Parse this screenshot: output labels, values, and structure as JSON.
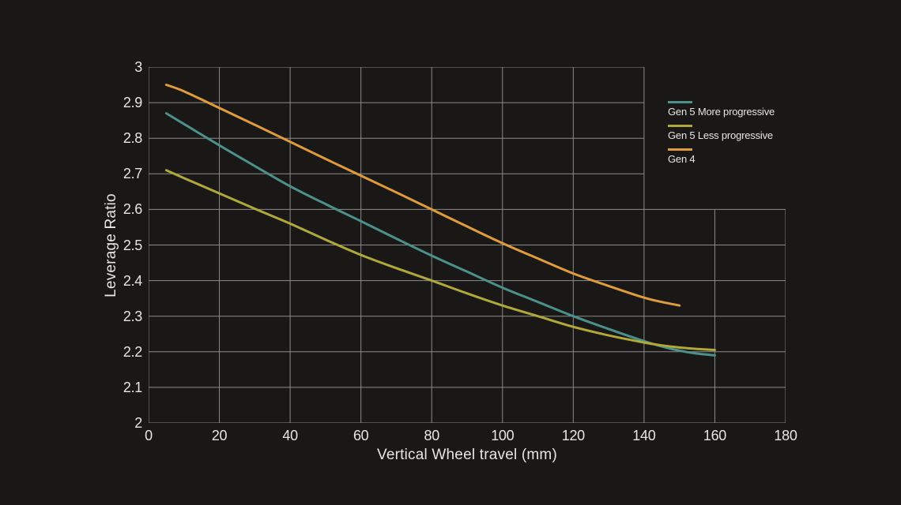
{
  "colors": {
    "background": "#1A1817",
    "grid": "#8A8A8A",
    "text": "#E7E5E2"
  },
  "chart_data": {
    "type": "line",
    "title": "",
    "xlabel": "Vertical Wheel travel (mm)",
    "ylabel": "Leverage Ratio",
    "xlim": [
      0,
      180
    ],
    "ylim": [
      2,
      3
    ],
    "grid": true,
    "grid_cutout": {
      "x_from": 140,
      "y_above": 2.6
    },
    "legend_position": "top-right",
    "x_tick_values": [
      0,
      20,
      40,
      60,
      80,
      100,
      120,
      140,
      160,
      180
    ],
    "x_tick_labels": [
      "0",
      "20",
      "40",
      "60",
      "80",
      "100",
      "120",
      "140",
      "160",
      "180"
    ],
    "y_tick_values": [
      2,
      2.1,
      2.2,
      2.3,
      2.4,
      2.5,
      2.6,
      2.7,
      2.8,
      2.9,
      3
    ],
    "y_tick_labels": [
      "2",
      "2.1",
      "2.2",
      "2.3",
      "2.4",
      "2.5",
      "2.6",
      "2.7",
      "2.8",
      "2.9",
      "3"
    ],
    "series": [
      {
        "name": "Gen 5 More progressive",
        "color": "#4C908C",
        "x": [
          5,
          10,
          20,
          30,
          40,
          50,
          60,
          70,
          80,
          90,
          100,
          110,
          120,
          130,
          140,
          145,
          150,
          155,
          160
        ],
        "y": [
          2.87,
          2.84,
          2.78,
          2.722,
          2.665,
          2.615,
          2.567,
          2.518,
          2.47,
          2.425,
          2.38,
          2.34,
          2.3,
          2.264,
          2.23,
          2.215,
          2.203,
          2.195,
          2.19
        ]
      },
      {
        "name": "Gen 5 Less progressive",
        "color": "#B1A83A",
        "x": [
          5,
          10,
          20,
          30,
          40,
          50,
          60,
          70,
          80,
          90,
          100,
          110,
          120,
          130,
          140,
          145,
          150,
          155,
          160
        ],
        "y": [
          2.71,
          2.688,
          2.645,
          2.602,
          2.56,
          2.515,
          2.472,
          2.435,
          2.4,
          2.364,
          2.33,
          2.3,
          2.27,
          2.246,
          2.226,
          2.218,
          2.212,
          2.208,
          2.205
        ]
      },
      {
        "name": "Gen 4",
        "color": "#E09C3A",
        "x": [
          5,
          10,
          20,
          30,
          40,
          50,
          60,
          70,
          80,
          90,
          100,
          110,
          120,
          130,
          140,
          145,
          150
        ],
        "y": [
          2.95,
          2.932,
          2.885,
          2.838,
          2.79,
          2.742,
          2.695,
          2.648,
          2.6,
          2.552,
          2.505,
          2.462,
          2.42,
          2.385,
          2.352,
          2.34,
          2.33
        ]
      }
    ]
  }
}
